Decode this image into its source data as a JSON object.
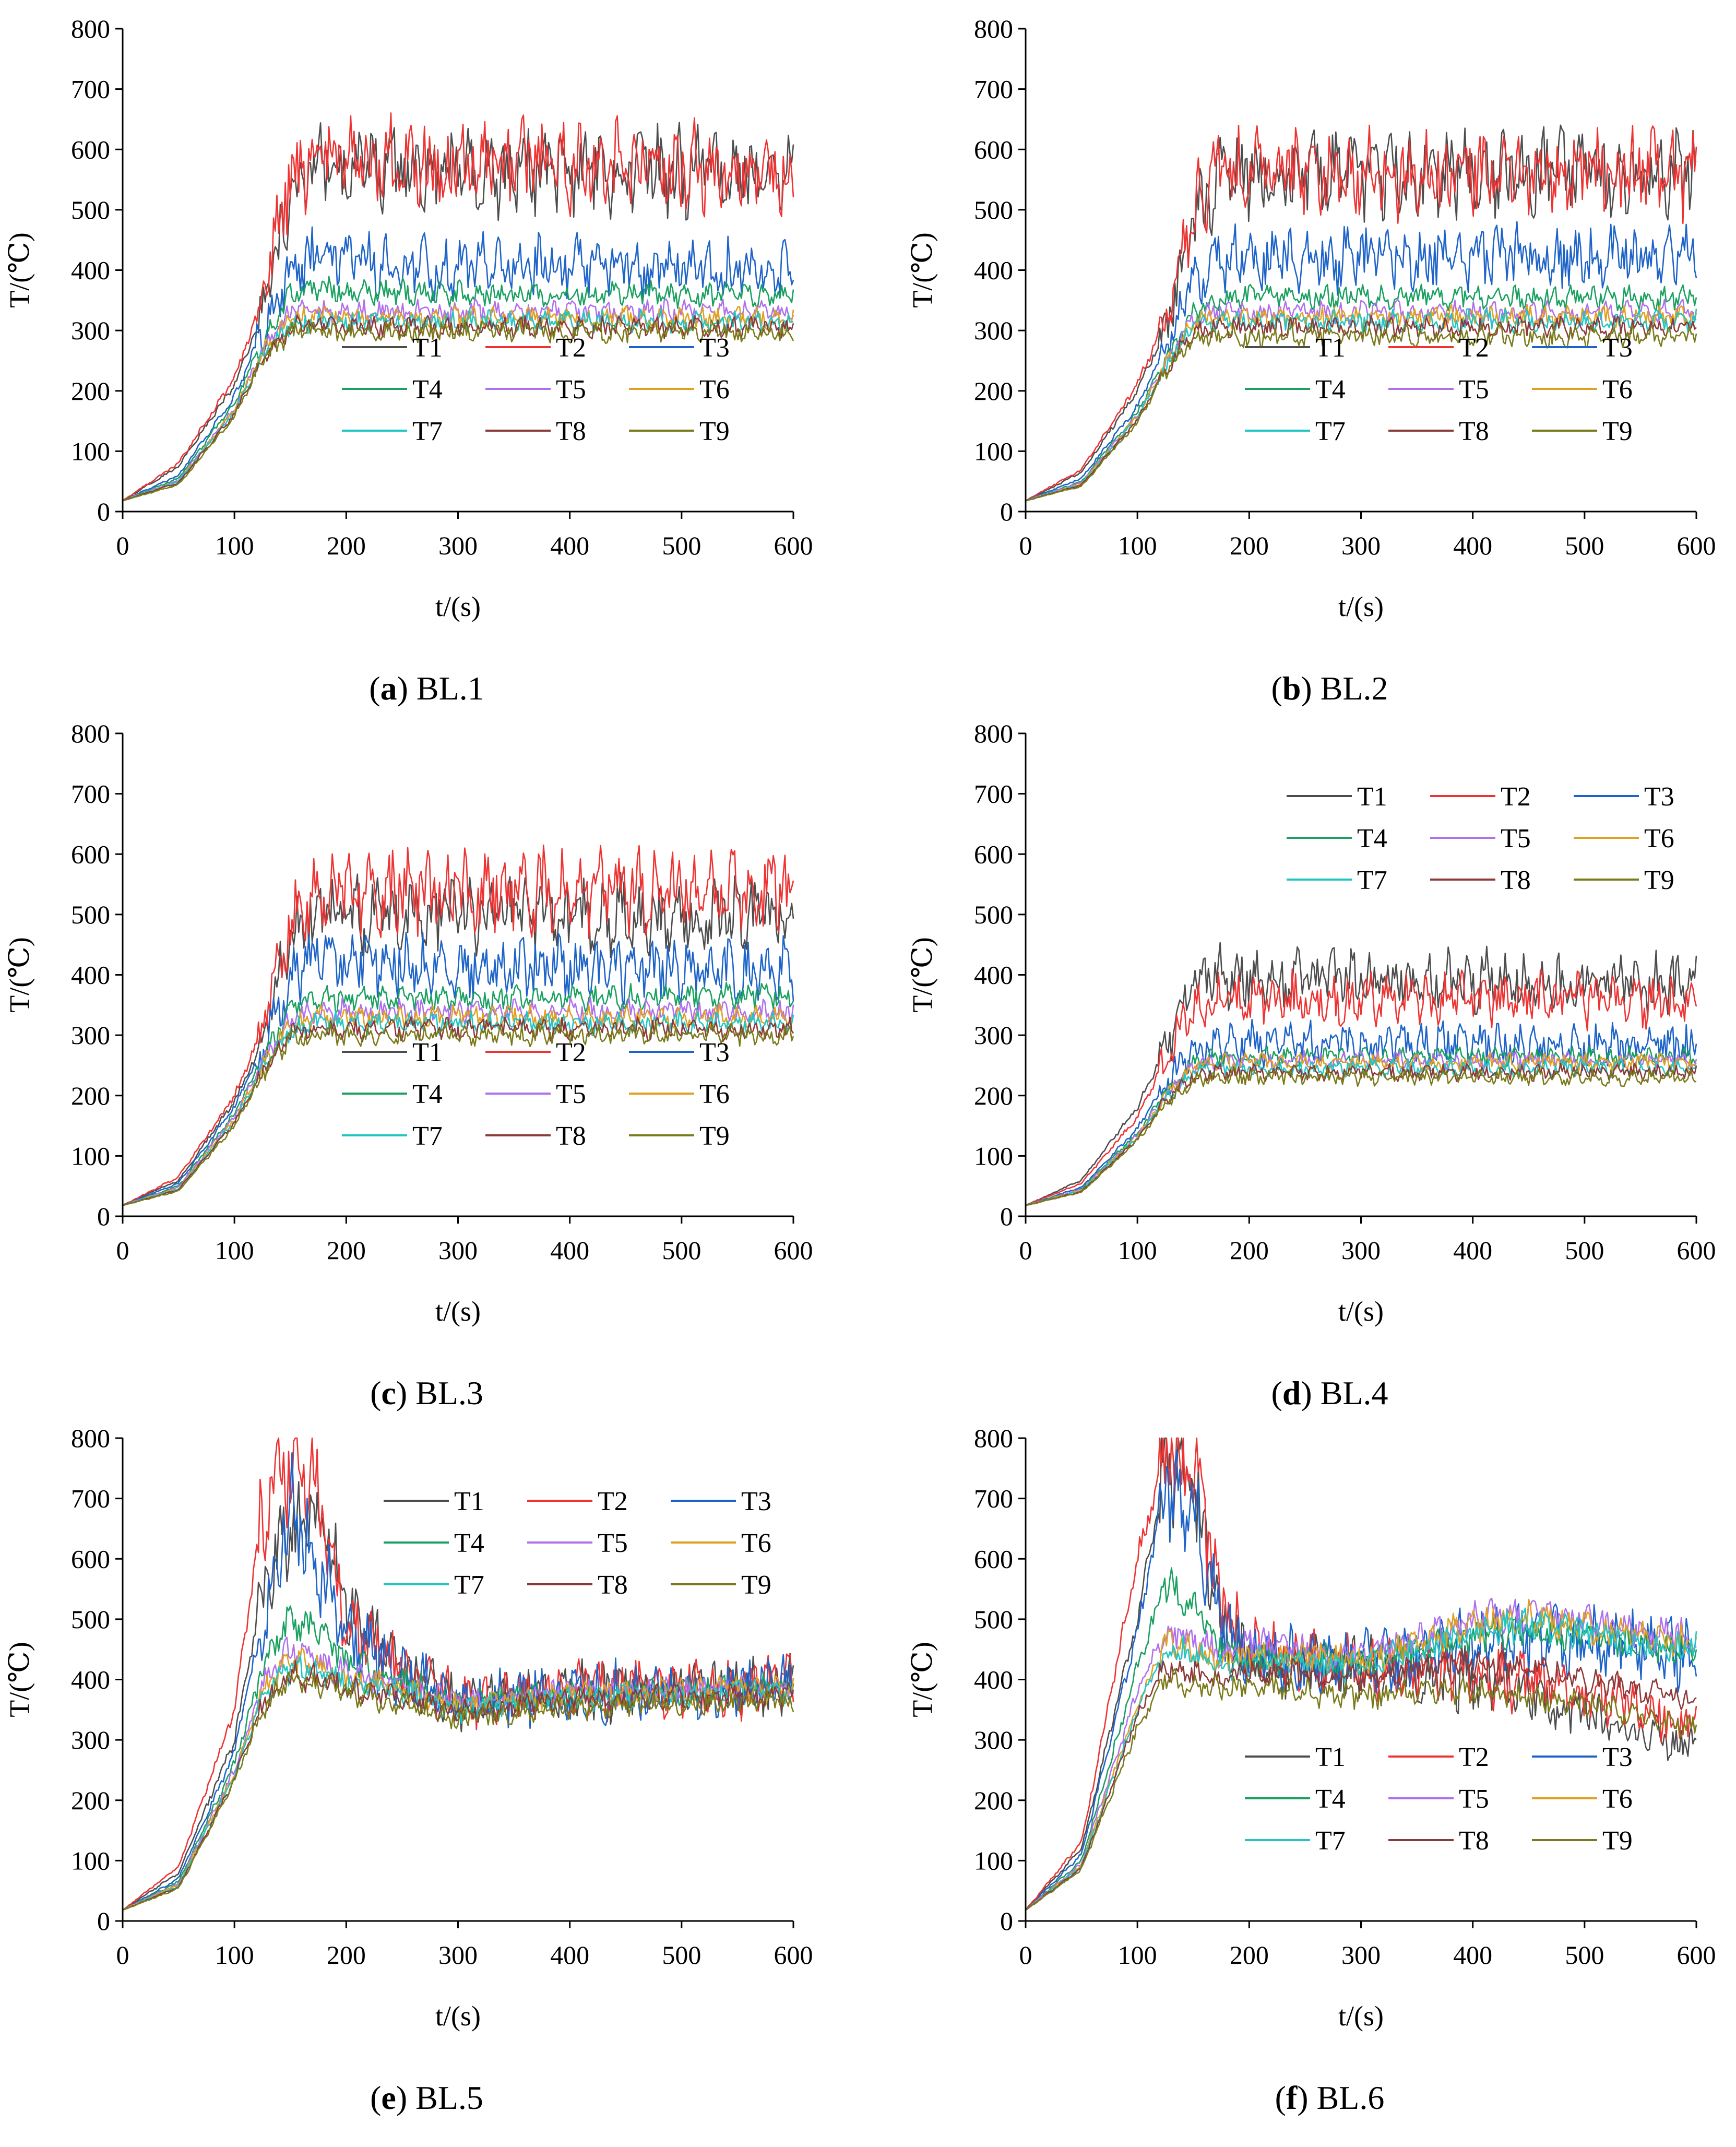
{
  "figure": {
    "series_names": [
      "T1",
      "T2",
      "T3",
      "T4",
      "T5",
      "T6",
      "T7",
      "T8",
      "T9"
    ],
    "series_colors": [
      "#4d4d4d",
      "#ee3333",
      "#1e64c8",
      "#1aa060",
      "#b070ee",
      "#e0a020",
      "#22c4c4",
      "#8b3a3a",
      "#7a7a1a"
    ],
    "legend_order": [
      0,
      3,
      6,
      1,
      4,
      7,
      2,
      5,
      8
    ]
  },
  "chart_data": [
    {
      "type": "line",
      "panel": "a",
      "caption_letter": "(a)",
      "caption_rest": " BL.1",
      "xlabel": "t/(s)",
      "ylabel": "T/(℃)",
      "xlim": [
        0,
        600
      ],
      "ylim": [
        0,
        800
      ],
      "xticks": [
        0,
        100,
        200,
        300,
        400,
        500,
        600
      ],
      "yticks": [
        0,
        100,
        200,
        300,
        400,
        500,
        600,
        700,
        800
      ],
      "legend_position": "lower-middle",
      "x": [
        0,
        50,
        100,
        125,
        150,
        175,
        200,
        300,
        400,
        500,
        600
      ],
      "series": [
        {
          "name": "T1",
          "values": [
            18,
            75,
            210,
            330,
            520,
            580,
            570,
            565,
            565,
            565,
            560
          ]
        },
        {
          "name": "T2",
          "values": [
            18,
            80,
            220,
            350,
            560,
            585,
            580,
            570,
            575,
            570,
            560
          ]
        },
        {
          "name": "T3",
          "values": [
            18,
            60,
            190,
            300,
            400,
            420,
            410,
            405,
            405,
            400,
            395
          ]
        },
        {
          "name": "T4",
          "values": [
            18,
            55,
            180,
            280,
            360,
            370,
            365,
            360,
            360,
            360,
            360
          ]
        },
        {
          "name": "T5",
          "values": [
            18,
            52,
            170,
            265,
            330,
            335,
            330,
            330,
            330,
            330,
            330
          ]
        },
        {
          "name": "T6",
          "values": [
            18,
            50,
            168,
            262,
            320,
            325,
            320,
            320,
            320,
            320,
            320
          ]
        },
        {
          "name": "T7",
          "values": [
            18,
            50,
            165,
            258,
            310,
            318,
            315,
            315,
            315,
            315,
            315
          ]
        },
        {
          "name": "T8",
          "values": [
            18,
            48,
            162,
            255,
            305,
            310,
            305,
            305,
            305,
            305,
            305
          ]
        },
        {
          "name": "T9",
          "values": [
            18,
            45,
            158,
            250,
            295,
            300,
            298,
            298,
            298,
            298,
            298
          ]
        }
      ]
    },
    {
      "type": "line",
      "panel": "b",
      "caption_letter": "(b)",
      "caption_rest": " BL.2",
      "xlabel": "t/(s)",
      "ylabel": "T/(℃)",
      "xlim": [
        0,
        600
      ],
      "ylim": [
        0,
        800
      ],
      "xticks": [
        0,
        100,
        200,
        300,
        400,
        500,
        600
      ],
      "yticks": [
        0,
        100,
        200,
        300,
        400,
        500,
        600,
        700,
        800
      ],
      "legend_position": "lower-right",
      "x": [
        0,
        50,
        100,
        125,
        150,
        175,
        200,
        300,
        400,
        500,
        600
      ],
      "series": [
        {
          "name": "T1",
          "values": [
            18,
            65,
            200,
            300,
            480,
            560,
            560,
            555,
            560,
            560,
            560
          ]
        },
        {
          "name": "T2",
          "values": [
            18,
            70,
            210,
            320,
            500,
            570,
            565,
            560,
            560,
            565,
            560
          ]
        },
        {
          "name": "T3",
          "values": [
            18,
            55,
            175,
            270,
            380,
            420,
            420,
            420,
            420,
            420,
            420
          ]
        },
        {
          "name": "T4",
          "values": [
            18,
            50,
            165,
            250,
            330,
            355,
            355,
            355,
            355,
            355,
            355
          ]
        },
        {
          "name": "T5",
          "values": [
            18,
            48,
            160,
            245,
            320,
            330,
            330,
            330,
            330,
            330,
            330
          ]
        },
        {
          "name": "T6",
          "values": [
            18,
            46,
            158,
            240,
            315,
            322,
            322,
            322,
            322,
            322,
            322
          ]
        },
        {
          "name": "T7",
          "values": [
            18,
            45,
            155,
            238,
            310,
            315,
            315,
            315,
            315,
            315,
            315
          ]
        },
        {
          "name": "T8",
          "values": [
            18,
            44,
            152,
            235,
            300,
            305,
            305,
            305,
            305,
            305,
            305
          ]
        },
        {
          "name": "T9",
          "values": [
            18,
            42,
            148,
            230,
            285,
            290,
            290,
            290,
            290,
            290,
            290
          ]
        }
      ]
    },
    {
      "type": "line",
      "panel": "c",
      "caption_letter": "(c)",
      "caption_rest": " BL.3",
      "xlabel": "t/(s)",
      "ylabel": "T/(℃)",
      "xlim": [
        0,
        600
      ],
      "ylim": [
        0,
        800
      ],
      "xticks": [
        0,
        100,
        200,
        300,
        400,
        500,
        600
      ],
      "yticks": [
        0,
        100,
        200,
        300,
        400,
        500,
        600,
        700,
        800
      ],
      "legend_position": "lower-middle",
      "x": [
        0,
        50,
        100,
        125,
        150,
        175,
        200,
        300,
        400,
        500,
        600
      ],
      "series": [
        {
          "name": "T1",
          "values": [
            18,
            60,
            190,
            290,
            470,
            520,
            500,
            500,
            500,
            500,
            500
          ]
        },
        {
          "name": "T2",
          "values": [
            18,
            65,
            200,
            310,
            490,
            540,
            540,
            540,
            540,
            540,
            540
          ]
        },
        {
          "name": "T3",
          "values": [
            18,
            55,
            180,
            280,
            400,
            430,
            420,
            415,
            410,
            410,
            410
          ]
        },
        {
          "name": "T4",
          "values": [
            18,
            50,
            170,
            260,
            340,
            360,
            360,
            360,
            360,
            365,
            365
          ]
        },
        {
          "name": "T5",
          "values": [
            18,
            48,
            165,
            255,
            325,
            340,
            340,
            340,
            340,
            340,
            340
          ]
        },
        {
          "name": "T6",
          "values": [
            18,
            46,
            160,
            250,
            318,
            330,
            330,
            330,
            330,
            330,
            330
          ]
        },
        {
          "name": "T7",
          "values": [
            18,
            45,
            158,
            245,
            310,
            320,
            320,
            320,
            320,
            320,
            320
          ]
        },
        {
          "name": "T8",
          "values": [
            18,
            44,
            155,
            240,
            305,
            310,
            310,
            310,
            310,
            310,
            310
          ]
        },
        {
          "name": "T9",
          "values": [
            18,
            42,
            150,
            235,
            295,
            300,
            300,
            300,
            300,
            300,
            300
          ]
        }
      ]
    },
    {
      "type": "line",
      "panel": "d",
      "caption_letter": "(d)",
      "caption_rest": " BL.4",
      "xlabel": "t/(s)",
      "ylabel": "T/(℃)",
      "xlim": [
        0,
        600
      ],
      "ylim": [
        0,
        800
      ],
      "xticks": [
        0,
        100,
        200,
        300,
        400,
        500,
        600
      ],
      "yticks": [
        0,
        100,
        200,
        300,
        400,
        500,
        600,
        700,
        800
      ],
      "legend_position": "upper-right",
      "x": [
        0,
        50,
        100,
        125,
        150,
        175,
        200,
        300,
        400,
        500,
        600
      ],
      "series": [
        {
          "name": "T1",
          "values": [
            18,
            60,
            180,
            280,
            380,
            400,
            390,
            390,
            390,
            390,
            380
          ]
        },
        {
          "name": "T2",
          "values": [
            18,
            55,
            165,
            260,
            350,
            370,
            360,
            360,
            360,
            360,
            355
          ]
        },
        {
          "name": "T3",
          "values": [
            18,
            48,
            145,
            220,
            275,
            285,
            285,
            285,
            285,
            280,
            280
          ]
        },
        {
          "name": "T4",
          "values": [
            18,
            45,
            138,
            205,
            255,
            265,
            265,
            265,
            265,
            265,
            265
          ]
        },
        {
          "name": "T5",
          "values": [
            18,
            44,
            135,
            200,
            250,
            258,
            258,
            258,
            258,
            258,
            258
          ]
        },
        {
          "name": "T6",
          "values": [
            18,
            43,
            132,
            198,
            248,
            255,
            255,
            255,
            255,
            255,
            255
          ]
        },
        {
          "name": "T7",
          "values": [
            18,
            42,
            130,
            195,
            240,
            245,
            245,
            245,
            245,
            245,
            245
          ]
        },
        {
          "name": "T8",
          "values": [
            18,
            41,
            128,
            190,
            232,
            238,
            238,
            238,
            238,
            238,
            238
          ]
        },
        {
          "name": "T9",
          "values": [
            18,
            40,
            125,
            185,
            225,
            230,
            230,
            230,
            230,
            230,
            230
          ]
        }
      ]
    },
    {
      "type": "line",
      "panel": "e",
      "caption_letter": "(e)",
      "caption_rest": " BL.5",
      "xlabel": "t/(s)",
      "ylabel": "T/(℃)",
      "xlim": [
        0,
        600
      ],
      "ylim": [
        0,
        800
      ],
      "xticks": [
        0,
        100,
        200,
        300,
        400,
        500,
        600
      ],
      "yticks": [
        0,
        100,
        200,
        300,
        400,
        500,
        600,
        700,
        800
      ],
      "legend_position": "upper-right",
      "x": [
        0,
        50,
        100,
        125,
        150,
        175,
        200,
        250,
        300,
        400,
        500,
        600
      ],
      "series": [
        {
          "name": "T1",
          "values": [
            18,
            80,
            300,
            550,
            650,
            680,
            520,
            420,
            360,
            380,
            380,
            390
          ]
        },
        {
          "name": "T2",
          "values": [
            18,
            90,
            350,
            680,
            760,
            720,
            500,
            420,
            365,
            385,
            385,
            390
          ]
        },
        {
          "name": "T3",
          "values": [
            18,
            70,
            280,
            500,
            700,
            600,
            470,
            410,
            360,
            380,
            380,
            390
          ]
        },
        {
          "name": "T4",
          "values": [
            18,
            65,
            260,
            420,
            500,
            480,
            430,
            400,
            360,
            380,
            380,
            385
          ]
        },
        {
          "name": "T5",
          "values": [
            18,
            62,
            250,
            390,
            450,
            430,
            410,
            390,
            360,
            380,
            380,
            385
          ]
        },
        {
          "name": "T6",
          "values": [
            18,
            60,
            245,
            380,
            430,
            420,
            400,
            385,
            355,
            375,
            380,
            385
          ]
        },
        {
          "name": "T7",
          "values": [
            18,
            58,
            240,
            370,
            420,
            410,
            395,
            380,
            350,
            370,
            375,
            380
          ]
        },
        {
          "name": "T8",
          "values": [
            18,
            56,
            235,
            360,
            410,
            400,
            385,
            370,
            345,
            365,
            370,
            375
          ]
        },
        {
          "name": "T9",
          "values": [
            18,
            54,
            230,
            350,
            400,
            390,
            375,
            360,
            335,
            355,
            360,
            365
          ]
        }
      ]
    },
    {
      "type": "line",
      "panel": "f",
      "caption_letter": "(f)",
      "caption_rest": " BL.6",
      "xlabel": "t/(s)",
      "ylabel": "T/(℃)",
      "xlim": [
        0,
        600
      ],
      "ylim": [
        0,
        800
      ],
      "xticks": [
        0,
        100,
        200,
        300,
        400,
        500,
        600
      ],
      "yticks": [
        0,
        100,
        200,
        300,
        400,
        500,
        600,
        700,
        800
      ],
      "legend_position": "lower-right",
      "x": [
        0,
        50,
        100,
        125,
        150,
        175,
        200,
        250,
        300,
        350,
        400,
        450,
        500,
        550,
        600
      ],
      "series": [
        {
          "name": "T1",
          "values": [
            18,
            120,
            500,
            760,
            720,
            500,
            430,
            420,
            420,
            410,
            400,
            380,
            340,
            310,
            290
          ]
        },
        {
          "name": "T2",
          "values": [
            18,
            130,
            600,
            780,
            760,
            520,
            440,
            430,
            420,
            415,
            410,
            400,
            380,
            350,
            330
          ]
        },
        {
          "name": "T3",
          "values": [
            18,
            110,
            480,
            720,
            680,
            500,
            440,
            430,
            425,
            440,
            460,
            470,
            460,
            450,
            440
          ]
        },
        {
          "name": "T4",
          "values": [
            18,
            100,
            420,
            560,
            520,
            460,
            430,
            440,
            430,
            450,
            470,
            480,
            470,
            460,
            450
          ]
        },
        {
          "name": "T5",
          "values": [
            18,
            95,
            380,
            480,
            470,
            440,
            460,
            450,
            440,
            470,
            500,
            510,
            500,
            480,
            470
          ]
        },
        {
          "name": "T6",
          "values": [
            18,
            92,
            360,
            460,
            450,
            430,
            440,
            440,
            430,
            460,
            490,
            500,
            490,
            470,
            460
          ]
        },
        {
          "name": "T7",
          "values": [
            18,
            90,
            350,
            450,
            440,
            420,
            430,
            430,
            420,
            450,
            480,
            490,
            480,
            460,
            450
          ]
        },
        {
          "name": "T8",
          "values": [
            18,
            88,
            340,
            420,
            410,
            400,
            410,
            410,
            400,
            420,
            430,
            420,
            400,
            380,
            370
          ]
        },
        {
          "name": "T9",
          "values": [
            18,
            85,
            320,
            400,
            390,
            380,
            390,
            380,
            370,
            380,
            380,
            370,
            360,
            340,
            320
          ]
        }
      ]
    }
  ]
}
